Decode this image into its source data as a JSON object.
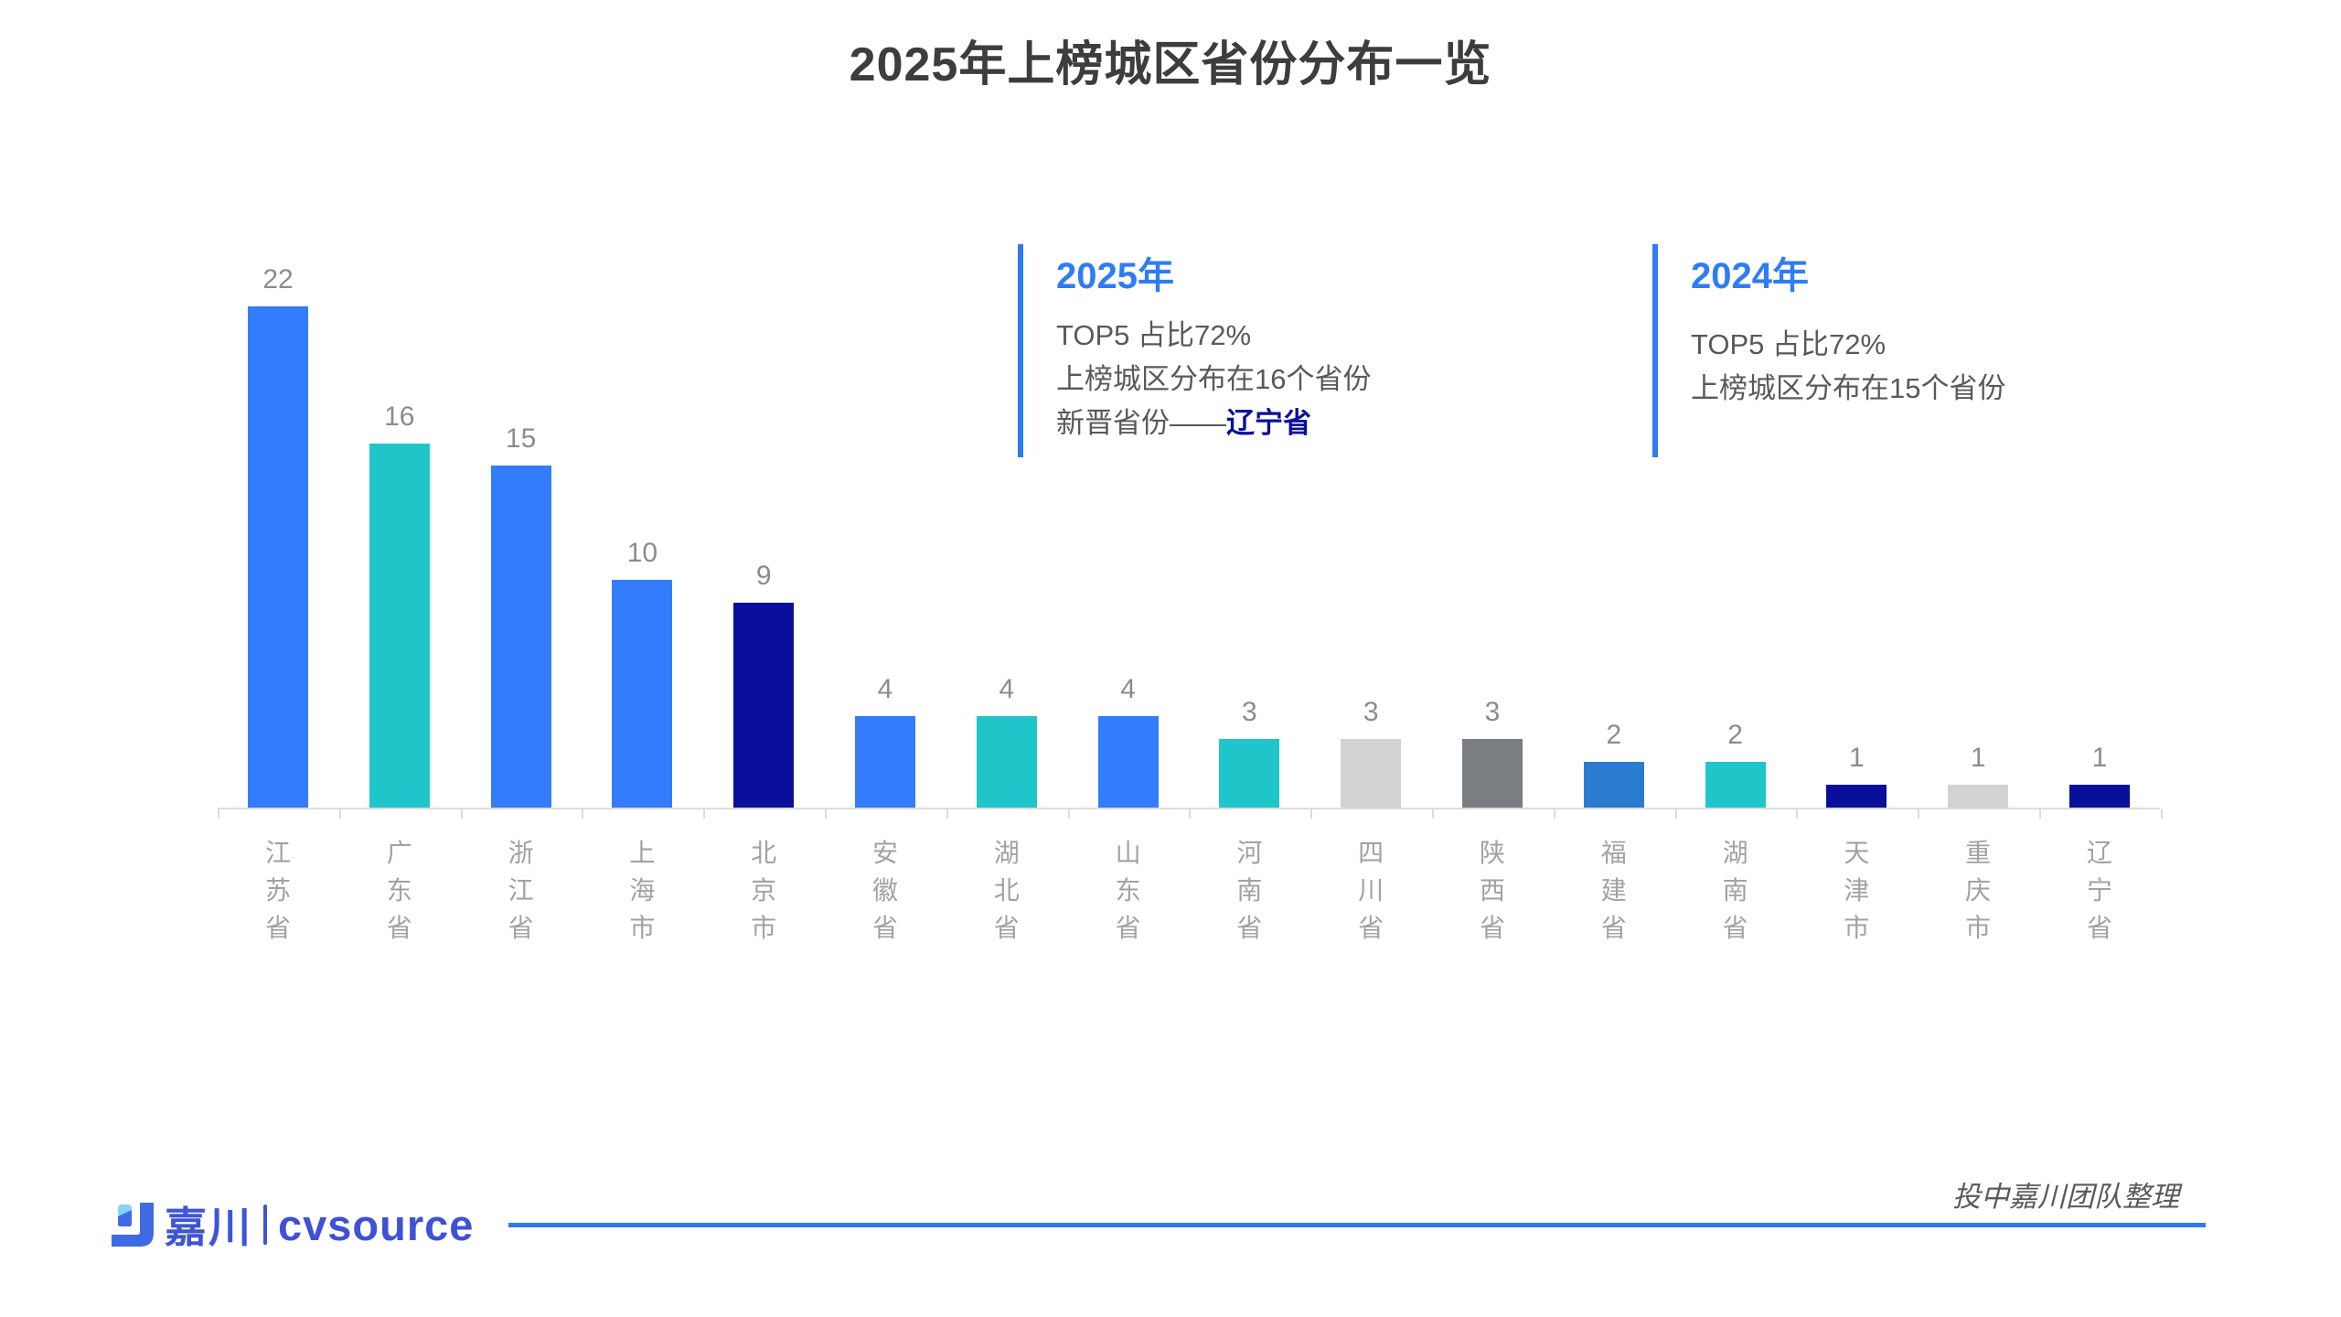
{
  "title": "2025年上榜城区省份分布一览",
  "chart_data": {
    "type": "bar",
    "title": "2025年上榜城区省份分布一览",
    "categories": [
      "江苏省",
      "广东省",
      "浙江省",
      "上海市",
      "北京市",
      "安徽省",
      "湖北省",
      "山东省",
      "河南省",
      "四川省",
      "陕西省",
      "福建省",
      "湖南省",
      "天津市",
      "重庆市",
      "辽宁省"
    ],
    "values": [
      22,
      16,
      15,
      10,
      9,
      4,
      4,
      4,
      3,
      3,
      3,
      2,
      2,
      1,
      1,
      1
    ],
    "colors": [
      "#337cfb",
      "#1fc6c9",
      "#337cfb",
      "#337cfb",
      "#0a0f9b",
      "#337cfb",
      "#1fc6c9",
      "#337cfb",
      "#1fc6c9",
      "#d2d2d2",
      "#7a7e82",
      "#2a7cd0",
      "#1fc6c9",
      "#0a0f9b",
      "#d2d2d2",
      "#0a0f9b"
    ],
    "xlabel": "",
    "ylabel": "",
    "ylim": [
      0,
      24
    ],
    "grid": false,
    "legend": false,
    "value_labels": true,
    "axis_visible": "x-only"
  },
  "annotations": {
    "y2025": {
      "heading": "2025年",
      "line1": "TOP5 占比72%",
      "line2": "上榜城区分布在16个省份",
      "line3_prefix": "新晋省份——",
      "line3_highlight": "辽宁省"
    },
    "y2024": {
      "heading": "2024年",
      "line1": "TOP5 占比72%",
      "line2": "上榜城区分布在15个省份"
    }
  },
  "footer": {
    "brand_cn": "嘉川",
    "brand_en": "cvsource",
    "credit": "投中嘉川团队整理"
  },
  "palette": {
    "accent_blue": "#2e7cf0",
    "bar_blue": "#337cfb",
    "bar_teal": "#1fc6c9",
    "bar_navy": "#0a0f9b",
    "bar_steel_blue": "#2a7cd0",
    "bar_light_gray": "#d2d2d2",
    "bar_dark_gray": "#7a7e82",
    "highlight_navy": "#0b109b",
    "logo_indigo": "#3e55d8"
  }
}
